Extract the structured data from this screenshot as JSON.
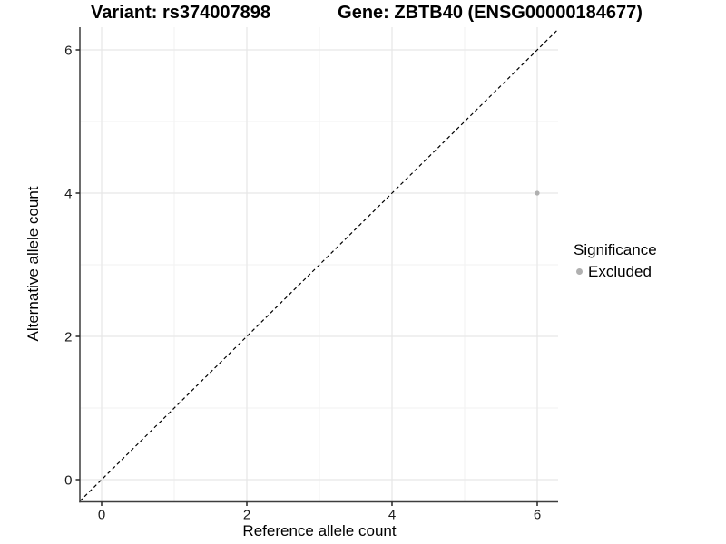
{
  "page": {
    "background": "#ffffff"
  },
  "chart_data": {
    "type": "scatter",
    "title_left": "Variant: rs374007898",
    "title_right": "Gene: ZBTB40 (ENSG00000184677)",
    "xlabel": "Reference allele count",
    "ylabel": "Alternative allele count",
    "xlim": [
      -0.3,
      6.29
    ],
    "ylim": [
      -0.31,
      6.32
    ],
    "x_ticks": [
      0,
      2,
      4,
      6
    ],
    "y_ticks": [
      0,
      2,
      4,
      6
    ],
    "minor_x_ticks": [
      1,
      3,
      5
    ],
    "minor_y_ticks": [
      1,
      3,
      5
    ],
    "grid": true,
    "points": [
      {
        "x": 6,
        "y": 4,
        "series": "Excluded"
      }
    ],
    "reference_line": {
      "slope": 1,
      "intercept": 0,
      "style": "dashed",
      "color": "#000000"
    },
    "legend": {
      "title": "Significance",
      "position": "right",
      "items": [
        {
          "label": "Excluded",
          "color": "#b0b0b0"
        }
      ]
    },
    "colors": {
      "point": "#b0b0b0",
      "grid_major": "#e7e7e7",
      "grid_minor": "#f2f2f2",
      "axis_line": "#3d3d3d",
      "tick_mark": "#262626",
      "tick_text": "#1a1a1a",
      "title_text": "#000000"
    }
  }
}
